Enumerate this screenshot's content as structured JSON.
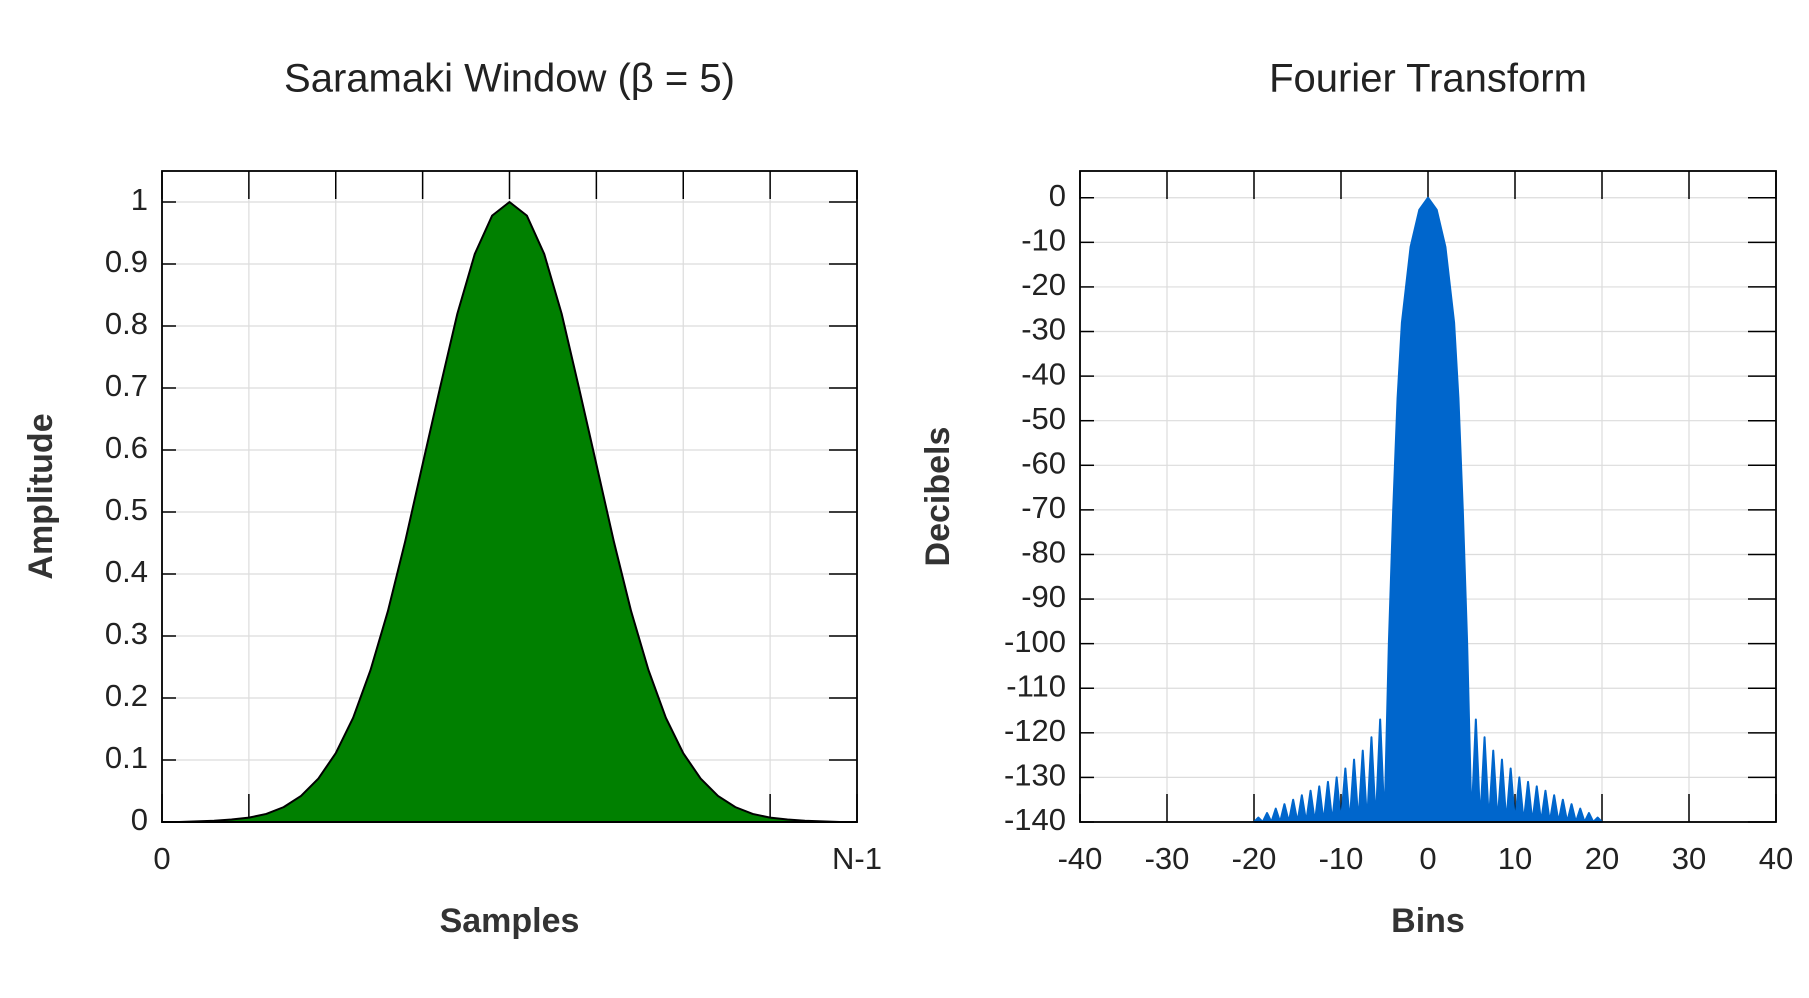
{
  "chart_data": [
    {
      "type": "area",
      "title": "Saramaki Window (β = 5)",
      "xlabel": "Samples",
      "ylabel": "Amplitude",
      "x": [
        0,
        0.025,
        0.05,
        0.075,
        0.1,
        0.125,
        0.15,
        0.175,
        0.2,
        0.225,
        0.25,
        0.275,
        0.3,
        0.325,
        0.35,
        0.375,
        0.4,
        0.425,
        0.45,
        0.475,
        0.5,
        0.525,
        0.55,
        0.575,
        0.6,
        0.625,
        0.65,
        0.675,
        0.7,
        0.725,
        0.75,
        0.775,
        0.8,
        0.825,
        0.85,
        0.875,
        0.9,
        0.925,
        0.95,
        0.975,
        1
      ],
      "values": [
        0,
        0,
        0.001,
        0.002,
        0.004,
        0.007,
        0.013,
        0.024,
        0.042,
        0.07,
        0.111,
        0.168,
        0.245,
        0.34,
        0.453,
        0.577,
        0.7,
        0.82,
        0.916,
        0.978,
        1,
        0.978,
        0.916,
        0.82,
        0.7,
        0.577,
        0.453,
        0.34,
        0.245,
        0.168,
        0.111,
        0.07,
        0.042,
        0.024,
        0.013,
        0.007,
        0.004,
        0.002,
        0.001,
        0,
        0
      ],
      "color": "#008000",
      "line_color": "#000000",
      "xlim": [
        0,
        1
      ],
      "xticks": [
        {
          "value": 0,
          "label": "0"
        },
        {
          "value": 1,
          "label": "N-1"
        }
      ],
      "x_divisions": 8,
      "ylim": [
        0,
        1.05
      ],
      "yticks": [
        0,
        0.1,
        0.2,
        0.3,
        0.4,
        0.5,
        0.6,
        0.7,
        0.8,
        0.9,
        1
      ],
      "grid": true
    },
    {
      "type": "area",
      "title": "Fourier Transform",
      "xlabel": "Bins",
      "ylabel": "Decibels",
      "x": [
        -20,
        -19.5,
        -19,
        -18.5,
        -18,
        -17.5,
        -17,
        -16.5,
        -16,
        -15.5,
        -15,
        -14.5,
        -14,
        -13.5,
        -13,
        -12.5,
        -12,
        -11.5,
        -11,
        -10.5,
        -10,
        -9.5,
        -9,
        -8.5,
        -8,
        -7.5,
        -7,
        -6.5,
        -6,
        -5.5,
        -5,
        -4.5,
        -4,
        -3.5,
        -3,
        -2,
        -1,
        0,
        1,
        2,
        3,
        3.5,
        4,
        4.5,
        5,
        5.5,
        6,
        6.5,
        7,
        7.5,
        8,
        8.5,
        9,
        9.5,
        10,
        10.5,
        11,
        11.5,
        12,
        12.5,
        13,
        13.5,
        14,
        14.5,
        15,
        15.5,
        16,
        16.5,
        17,
        17.5,
        18,
        18.5,
        19,
        19.5,
        20
      ],
      "values": [
        -140,
        -139,
        -140,
        -138,
        -140,
        -137,
        -140,
        -136,
        -140,
        -135,
        -140,
        -134,
        -140,
        -133,
        -140,
        -132,
        -140,
        -131,
        -140,
        -130,
        -140,
        -128,
        -140,
        -126,
        -140,
        -124,
        -140,
        -121,
        -140,
        -117,
        -140,
        -100,
        -70,
        -45,
        -28,
        -11,
        -2.7,
        0,
        -2.7,
        -11,
        -28,
        -45,
        -70,
        -100,
        -140,
        -117,
        -140,
        -121,
        -140,
        -124,
        -140,
        -126,
        -140,
        -128,
        -140,
        -130,
        -140,
        -131,
        -140,
        -132,
        -140,
        -133,
        -140,
        -134,
        -140,
        -135,
        -140,
        -136,
        -140,
        -137,
        -140,
        -138,
        -140,
        -139,
        -140
      ],
      "color": "#0066cc",
      "line_color": "#0066cc",
      "xlim": [
        -40,
        40
      ],
      "xticks": [
        -40,
        -30,
        -20,
        -10,
        0,
        10,
        20,
        30,
        40
      ],
      "ylim": [
        -140,
        6
      ],
      "yticks": [
        0,
        -10,
        -20,
        -30,
        -40,
        -50,
        -60,
        -70,
        -80,
        -90,
        -100,
        -110,
        -120,
        -130,
        -140
      ],
      "grid": true
    }
  ]
}
